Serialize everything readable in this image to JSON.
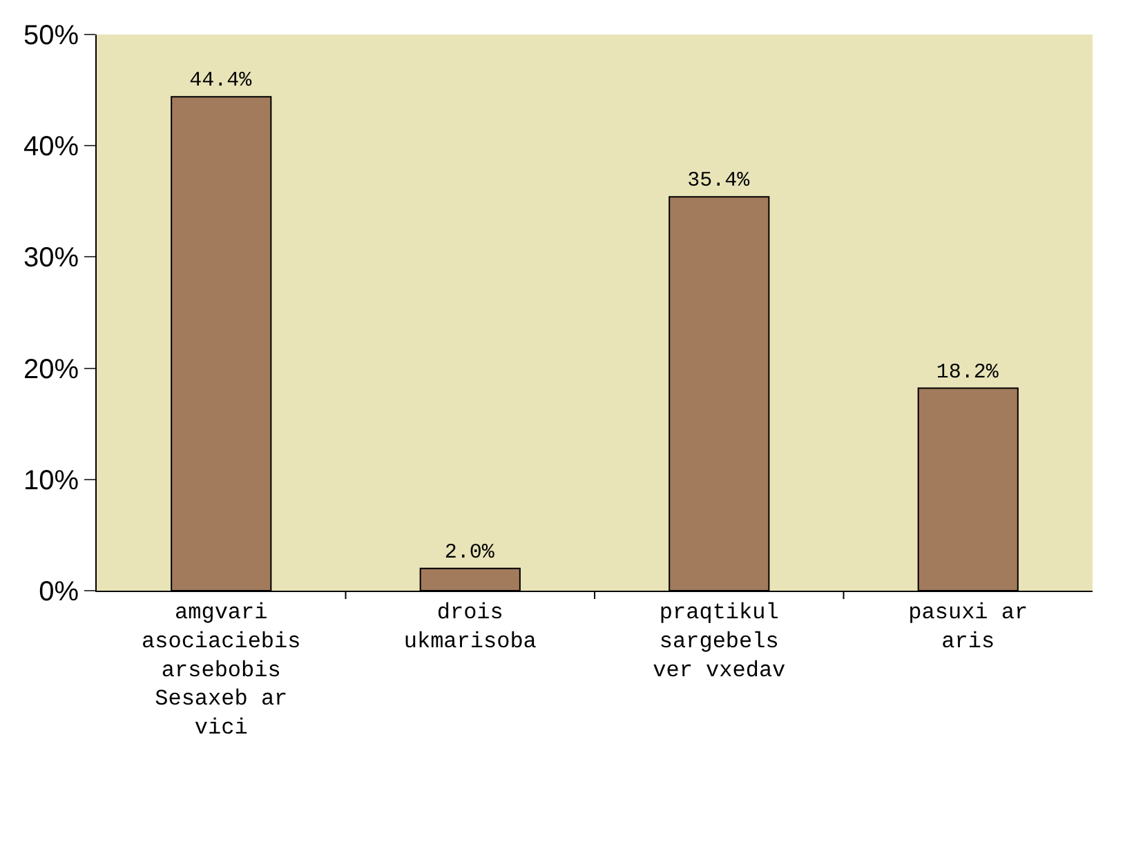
{
  "chart_data": {
    "type": "bar",
    "categories": [
      "amgvari asociaciebis arsebobis Sesaxeb ar vici",
      "drois ukmarisoba",
      "praqtikul sargebels ver vxedav",
      "pasuxi ar aris"
    ],
    "values": [
      44.4,
      2.0,
      35.4,
      18.2
    ],
    "value_labels": [
      "44.4%",
      "2.0%",
      "35.4%",
      "18.2%"
    ],
    "color": "#a27a5c",
    "ylim": [
      0,
      50
    ],
    "yticks": [
      {
        "value": 0,
        "label": "0%"
      },
      {
        "value": 10,
        "label": "10%"
      },
      {
        "value": 20,
        "label": "20%"
      },
      {
        "value": 30,
        "label": "30%"
      },
      {
        "value": 40,
        "label": "40%"
      },
      {
        "value": 50,
        "label": "50%"
      }
    ]
  }
}
